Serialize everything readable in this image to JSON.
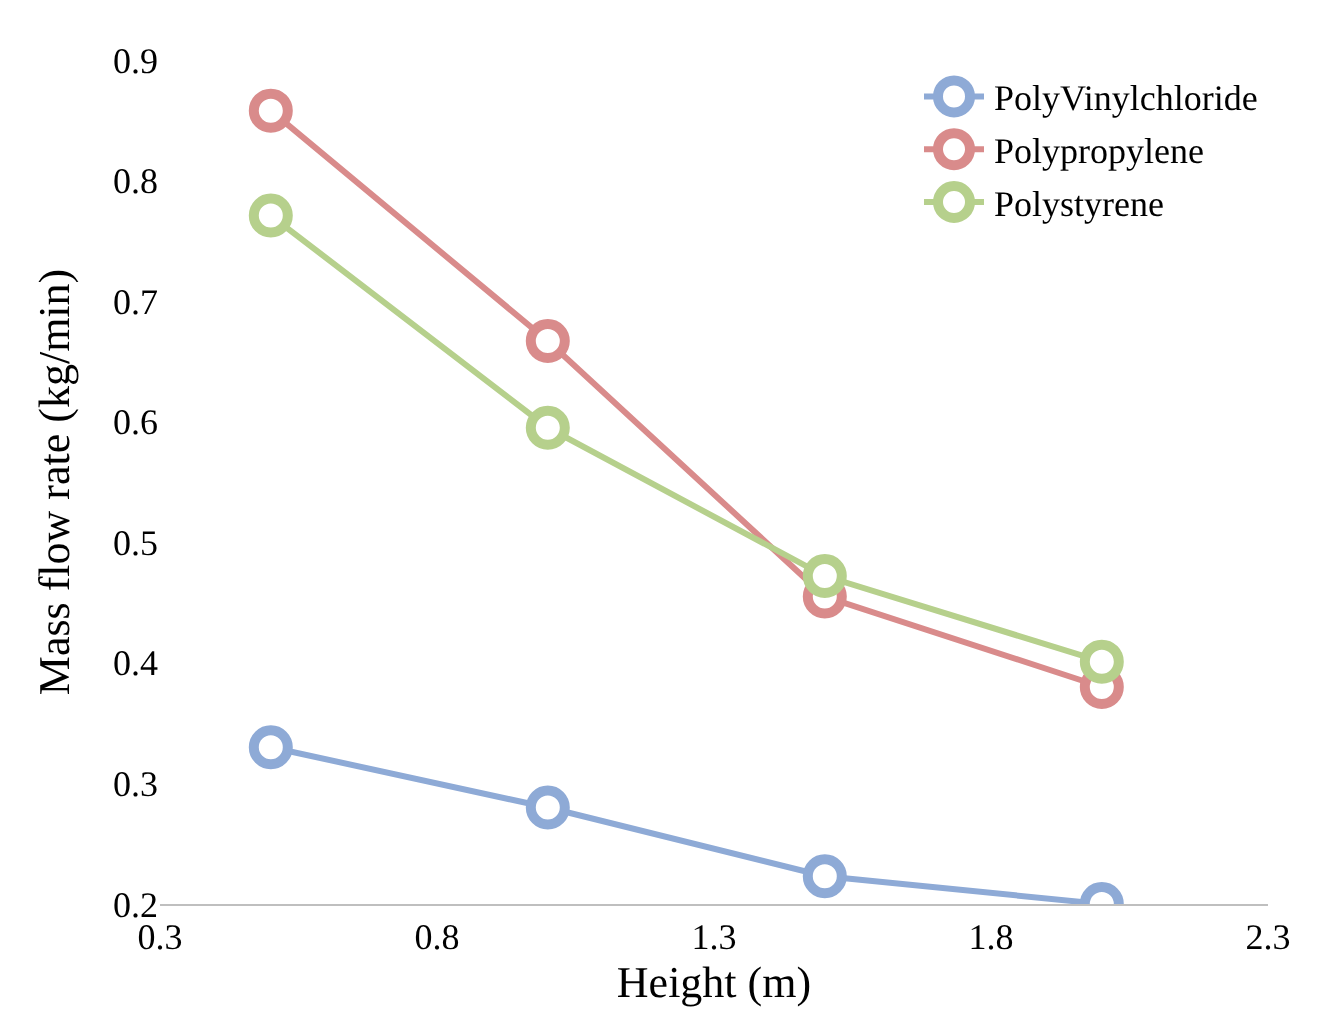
{
  "chart_data": {
    "type": "line",
    "xlabel": "Height (m)",
    "ylabel": "Mass flow rate (kg/min)",
    "x": [
      0.5,
      1.0,
      1.5,
      2.0
    ],
    "series": [
      {
        "name": "PolyVinylchloride",
        "color": "#8eaad6",
        "values": [
          0.33,
          0.28,
          0.223,
          0.2
        ]
      },
      {
        "name": "Polypropylene",
        "color": "#d98b8b",
        "values": [
          0.858,
          0.667,
          0.455,
          0.38
        ]
      },
      {
        "name": "Polystyrene",
        "color": "#b6d08c",
        "values": [
          0.771,
          0.595,
          0.472,
          0.401
        ]
      }
    ],
    "xlim": [
      0.3,
      2.3
    ],
    "xticks": [
      0.3,
      0.8,
      1.3,
      1.8,
      2.3
    ],
    "ylim": [
      0.2,
      0.9
    ],
    "yticks": [
      0.2,
      0.3,
      0.4,
      0.5,
      0.6,
      0.7,
      0.8,
      0.9
    ],
    "grid": false,
    "legend": "top right",
    "marker": "circle",
    "line_style": "solid"
  }
}
